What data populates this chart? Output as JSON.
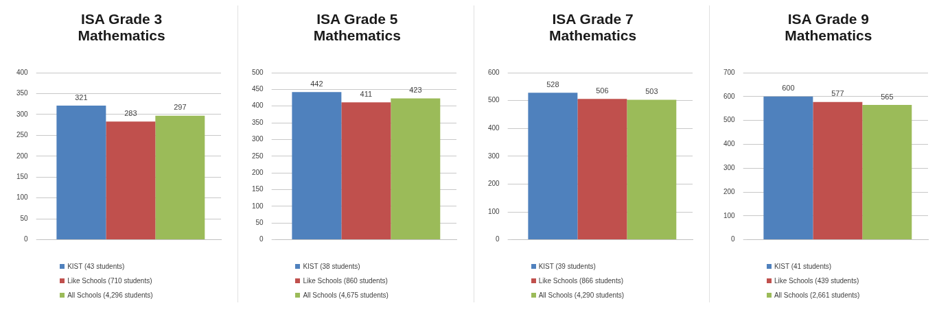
{
  "chart_data": [
    {
      "type": "bar",
      "title": "ISA Grade 3 Mathematics",
      "categories": [
        null
      ],
      "series": [
        {
          "name": "KIST (43 students)",
          "color": "#4f81bd",
          "values": [
            321
          ]
        },
        {
          "name": "Like Schools (710 students)",
          "color": "#c0504d",
          "values": [
            283
          ]
        },
        {
          "name": "All Schools (4,296 students)",
          "color": "#9bbb59",
          "values": [
            297
          ]
        }
      ],
      "ylim": [
        0,
        400
      ],
      "yticks": [
        0,
        50,
        100,
        150,
        200,
        250,
        300,
        350,
        400
      ],
      "grid": "y",
      "data_labels": true,
      "legend": "bottom"
    },
    {
      "type": "bar",
      "title": "ISA Grade 5 Mathematics",
      "categories": [
        null
      ],
      "series": [
        {
          "name": "KIST (38 students)",
          "color": "#4f81bd",
          "values": [
            442
          ]
        },
        {
          "name": "Like Schools (860 students)",
          "color": "#c0504d",
          "values": [
            411
          ]
        },
        {
          "name": "All Schools (4,675 students)",
          "color": "#9bbb59",
          "values": [
            423
          ]
        }
      ],
      "ylim": [
        0,
        500
      ],
      "yticks": [
        0,
        50,
        100,
        150,
        200,
        250,
        300,
        350,
        400,
        450,
        500
      ],
      "grid": "y",
      "data_labels": true,
      "legend": "bottom"
    },
    {
      "type": "bar",
      "title": "ISA Grade 7 Mathematics",
      "categories": [
        null
      ],
      "series": [
        {
          "name": "KIST (39 students)",
          "color": "#4f81bd",
          "values": [
            528
          ]
        },
        {
          "name": "Like Schools (866 students)",
          "color": "#c0504d",
          "values": [
            506
          ]
        },
        {
          "name": "All Schools (4,290 students)",
          "color": "#9bbb59",
          "values": [
            503
          ]
        }
      ],
      "ylim": [
        0,
        600
      ],
      "yticks": [
        0,
        100,
        200,
        300,
        400,
        500,
        600
      ],
      "grid": "y",
      "data_labels": true,
      "legend": "bottom"
    },
    {
      "type": "bar",
      "title": "ISA Grade 9 Mathematics",
      "categories": [
        null
      ],
      "series": [
        {
          "name": "KIST (41 students)",
          "color": "#4f81bd",
          "values": [
            600
          ]
        },
        {
          "name": "Like Schools (439 students)",
          "color": "#c0504d",
          "values": [
            577
          ]
        },
        {
          "name": "All Schools (2,661 students)",
          "color": "#9bbb59",
          "values": [
            565
          ]
        }
      ],
      "ylim": [
        0,
        700
      ],
      "yticks": [
        0,
        100,
        200,
        300,
        400,
        500,
        600,
        700
      ],
      "grid": "y",
      "data_labels": true,
      "legend": "bottom"
    }
  ]
}
